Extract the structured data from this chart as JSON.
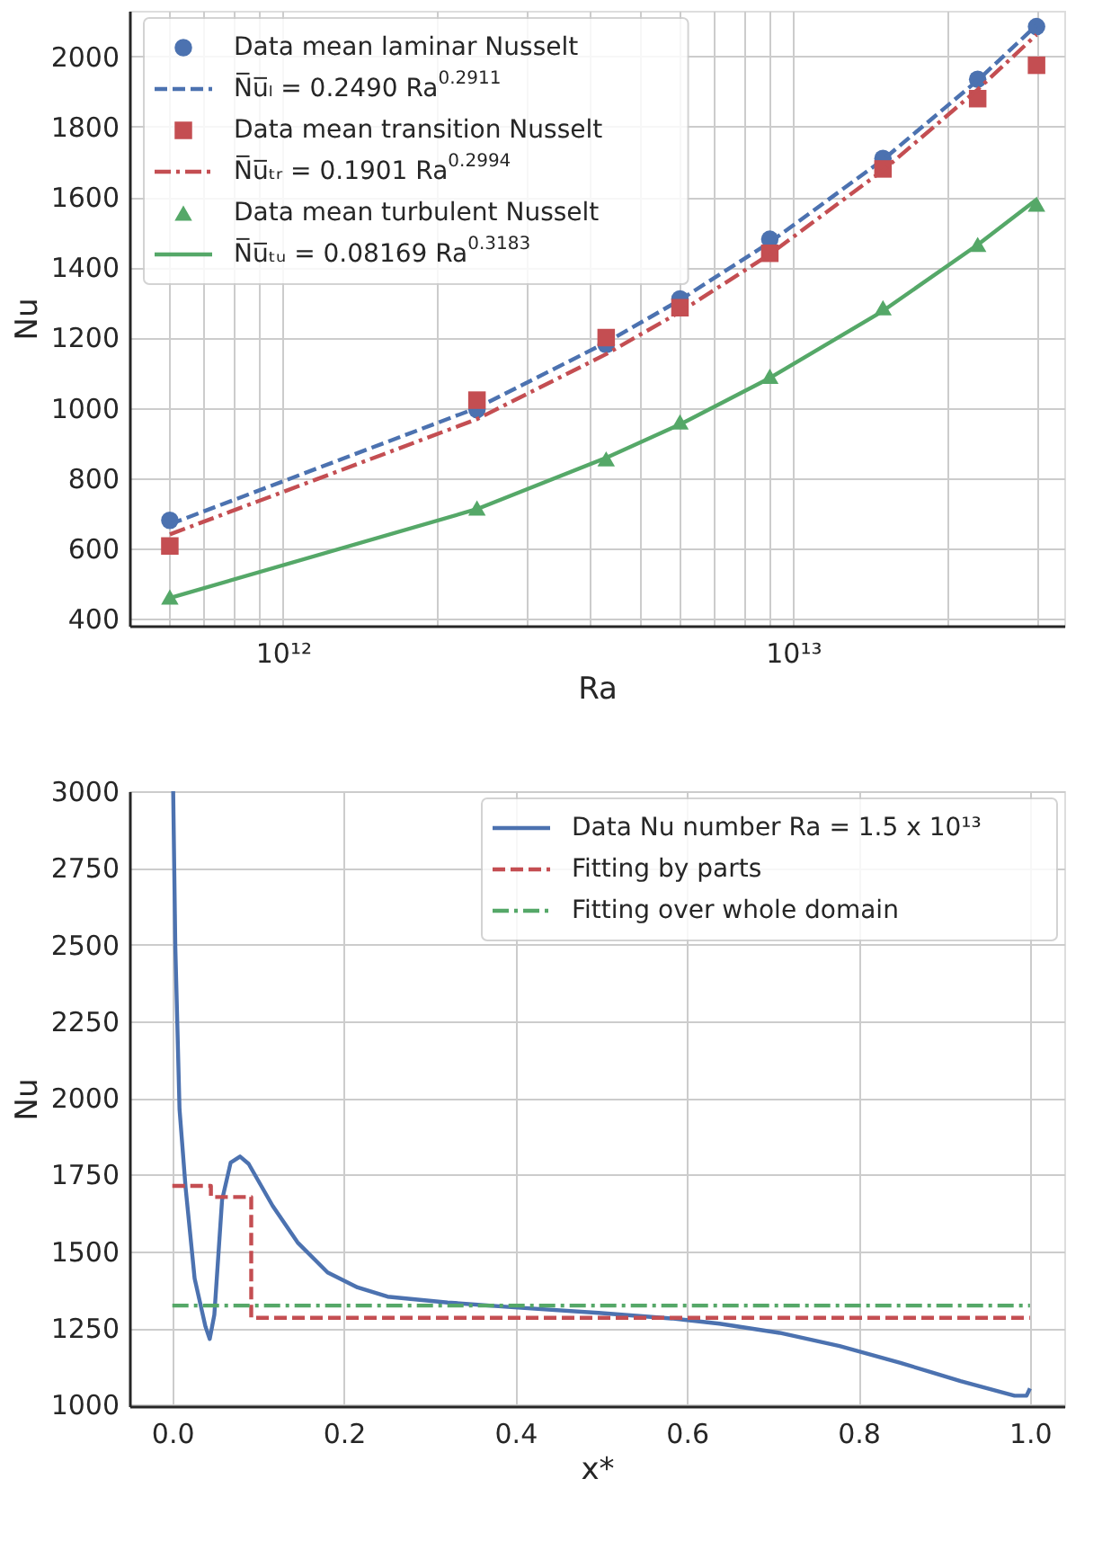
{
  "chart_data": [
    {
      "type": "scatter",
      "xlabel": "Ra",
      "ylabel": "Nu",
      "log": "x",
      "grid": true,
      "legend": "top left",
      "x": [
        600000000000.0,
        2400000000000.0,
        4300000000000.0,
        6000000000000.0,
        9000000000000.0,
        15000000000000.0,
        23000000000000.0,
        30000000000000.0
      ],
      "xlim": [
        500000000000.0,
        34000000000000.0
      ],
      "xticks": [
        {
          "value": 600000000000.0,
          "label": null
        },
        {
          "value": 700000000000.0,
          "label": null
        },
        {
          "value": 800000000000.0,
          "label": null
        },
        {
          "value": 900000000000.0,
          "label": null
        },
        {
          "value": 1000000000000.0,
          "label": "10¹²"
        },
        {
          "value": 2000000000000.0,
          "label": null
        },
        {
          "value": 3000000000000.0,
          "label": null
        },
        {
          "value": 4000000000000.0,
          "label": null
        },
        {
          "value": 5000000000000.0,
          "label": null
        },
        {
          "value": 6000000000000.0,
          "label": null
        },
        {
          "value": 7000000000000.0,
          "label": null
        },
        {
          "value": 8000000000000.0,
          "label": null
        },
        {
          "value": 9000000000000.0,
          "label": null
        },
        {
          "value": 10000000000000.0,
          "label": "10¹³"
        },
        {
          "value": 20000000000000.0,
          "label": null
        },
        {
          "value": 30000000000000.0,
          "label": null
        }
      ],
      "ylim": [
        380,
        2130
      ],
      "yticks": [
        400,
        600,
        800,
        1000,
        1200,
        1400,
        1600,
        1800,
        2000
      ],
      "series": [
        {
          "name": "Data mean laminar Nusselt",
          "type": "scatter",
          "marker": "circle",
          "color": "#4c72b0",
          "values": [
            680,
            995,
            1180,
            1310,
            1480,
            1710,
            1935,
            2085
          ]
        },
        {
          "name": "N̅u̅ₗ = 0.2490 Ra$^{0.2911}$",
          "type": "line",
          "line_style": "dashed",
          "color": "#4c72b0",
          "values": [
            669,
            1000,
            1186,
            1307,
            1471,
            1706,
            1932,
            2089
          ]
        },
        {
          "name": "Data mean transition Nusselt",
          "type": "scatter",
          "marker": "square",
          "color": "#c44e52",
          "values": [
            607,
            1022,
            1200,
            1285,
            1440,
            1680,
            1880,
            1975
          ]
        },
        {
          "name": "N̅u̅ₜᵣ = 0.1901 Ra$^{0.2994}$",
          "type": "line",
          "line_style": "dashdot",
          "color": "#c44e52",
          "values": [
            640,
            968,
            1153,
            1273,
            1437,
            1676,
            1906,
            2062
          ]
        },
        {
          "name": "Data mean turbulent Nusselt",
          "type": "scatter",
          "marker": "triangle",
          "color": "#55a868",
          "values": [
            462,
            715,
            855,
            960,
            1090,
            1285,
            1465,
            1580
          ]
        },
        {
          "name": "N̅u̅ₜᵤ = 0.08169 Ra$^{0.3183}$",
          "type": "line",
          "line_style": "solid",
          "color": "#55a868",
          "values": [
            459,
            712,
            858,
            953,
            1085,
            1276,
            1464,
            1593
          ]
        }
      ]
    },
    {
      "type": "line",
      "xlabel": "x*",
      "ylabel": "Nu",
      "grid": true,
      "legend": "top right",
      "xlim": [
        -0.05,
        1.04
      ],
      "xticks": [
        {
          "value": 0,
          "label": "0.0"
        },
        {
          "value": 0.2,
          "label": "0.2"
        },
        {
          "value": 0.4,
          "label": "0.4"
        },
        {
          "value": 0.6,
          "label": "0.6"
        },
        {
          "value": 0.8,
          "label": "0.8"
        },
        {
          "value": 1,
          "label": "1.0"
        }
      ],
      "ylim": [
        995,
        3000
      ],
      "yticks": [
        1000,
        1250,
        1500,
        1750,
        2000,
        2250,
        2500,
        2750,
        3000
      ],
      "series": [
        {
          "name": "Data Nu number Ra = 1.5 x 10¹³",
          "line_style": "solid",
          "color": "#4c72b0",
          "x": [
            0.001,
            0.0035,
            0.0084,
            0.0155,
            0.026,
            0.0387,
            0.0436,
            0.049,
            0.058,
            0.068,
            0.079,
            0.089,
            0.117,
            0.146,
            0.181,
            0.216,
            0.251,
            0.321,
            0.399,
            0.497,
            0.582,
            0.638,
            0.708,
            0.778,
            0.849,
            0.919,
            0.982,
            0.996,
            1.0
          ],
          "values": [
            3000,
            2493,
            1963,
            1707,
            1411,
            1254,
            1214,
            1293,
            1667,
            1789,
            1809,
            1785,
            1648,
            1529,
            1431,
            1382,
            1352,
            1333,
            1317,
            1299,
            1281,
            1264,
            1234,
            1191,
            1136,
            1077,
            1029,
            1029,
            1053
          ]
        },
        {
          "name": "Fitting by parts",
          "line_style": "dashed",
          "color": "#c44e52",
          "x": [
            0,
            0.045,
            0.045,
            0.092,
            0.092,
            1.0
          ],
          "values": [
            1713,
            1713,
            1677,
            1677,
            1283,
            1283
          ]
        },
        {
          "name": "Fitting over whole domain",
          "line_style": "dashdot",
          "color": "#55a868",
          "x": [
            0,
            1.0
          ],
          "values": [
            1323,
            1323
          ]
        }
      ]
    }
  ]
}
